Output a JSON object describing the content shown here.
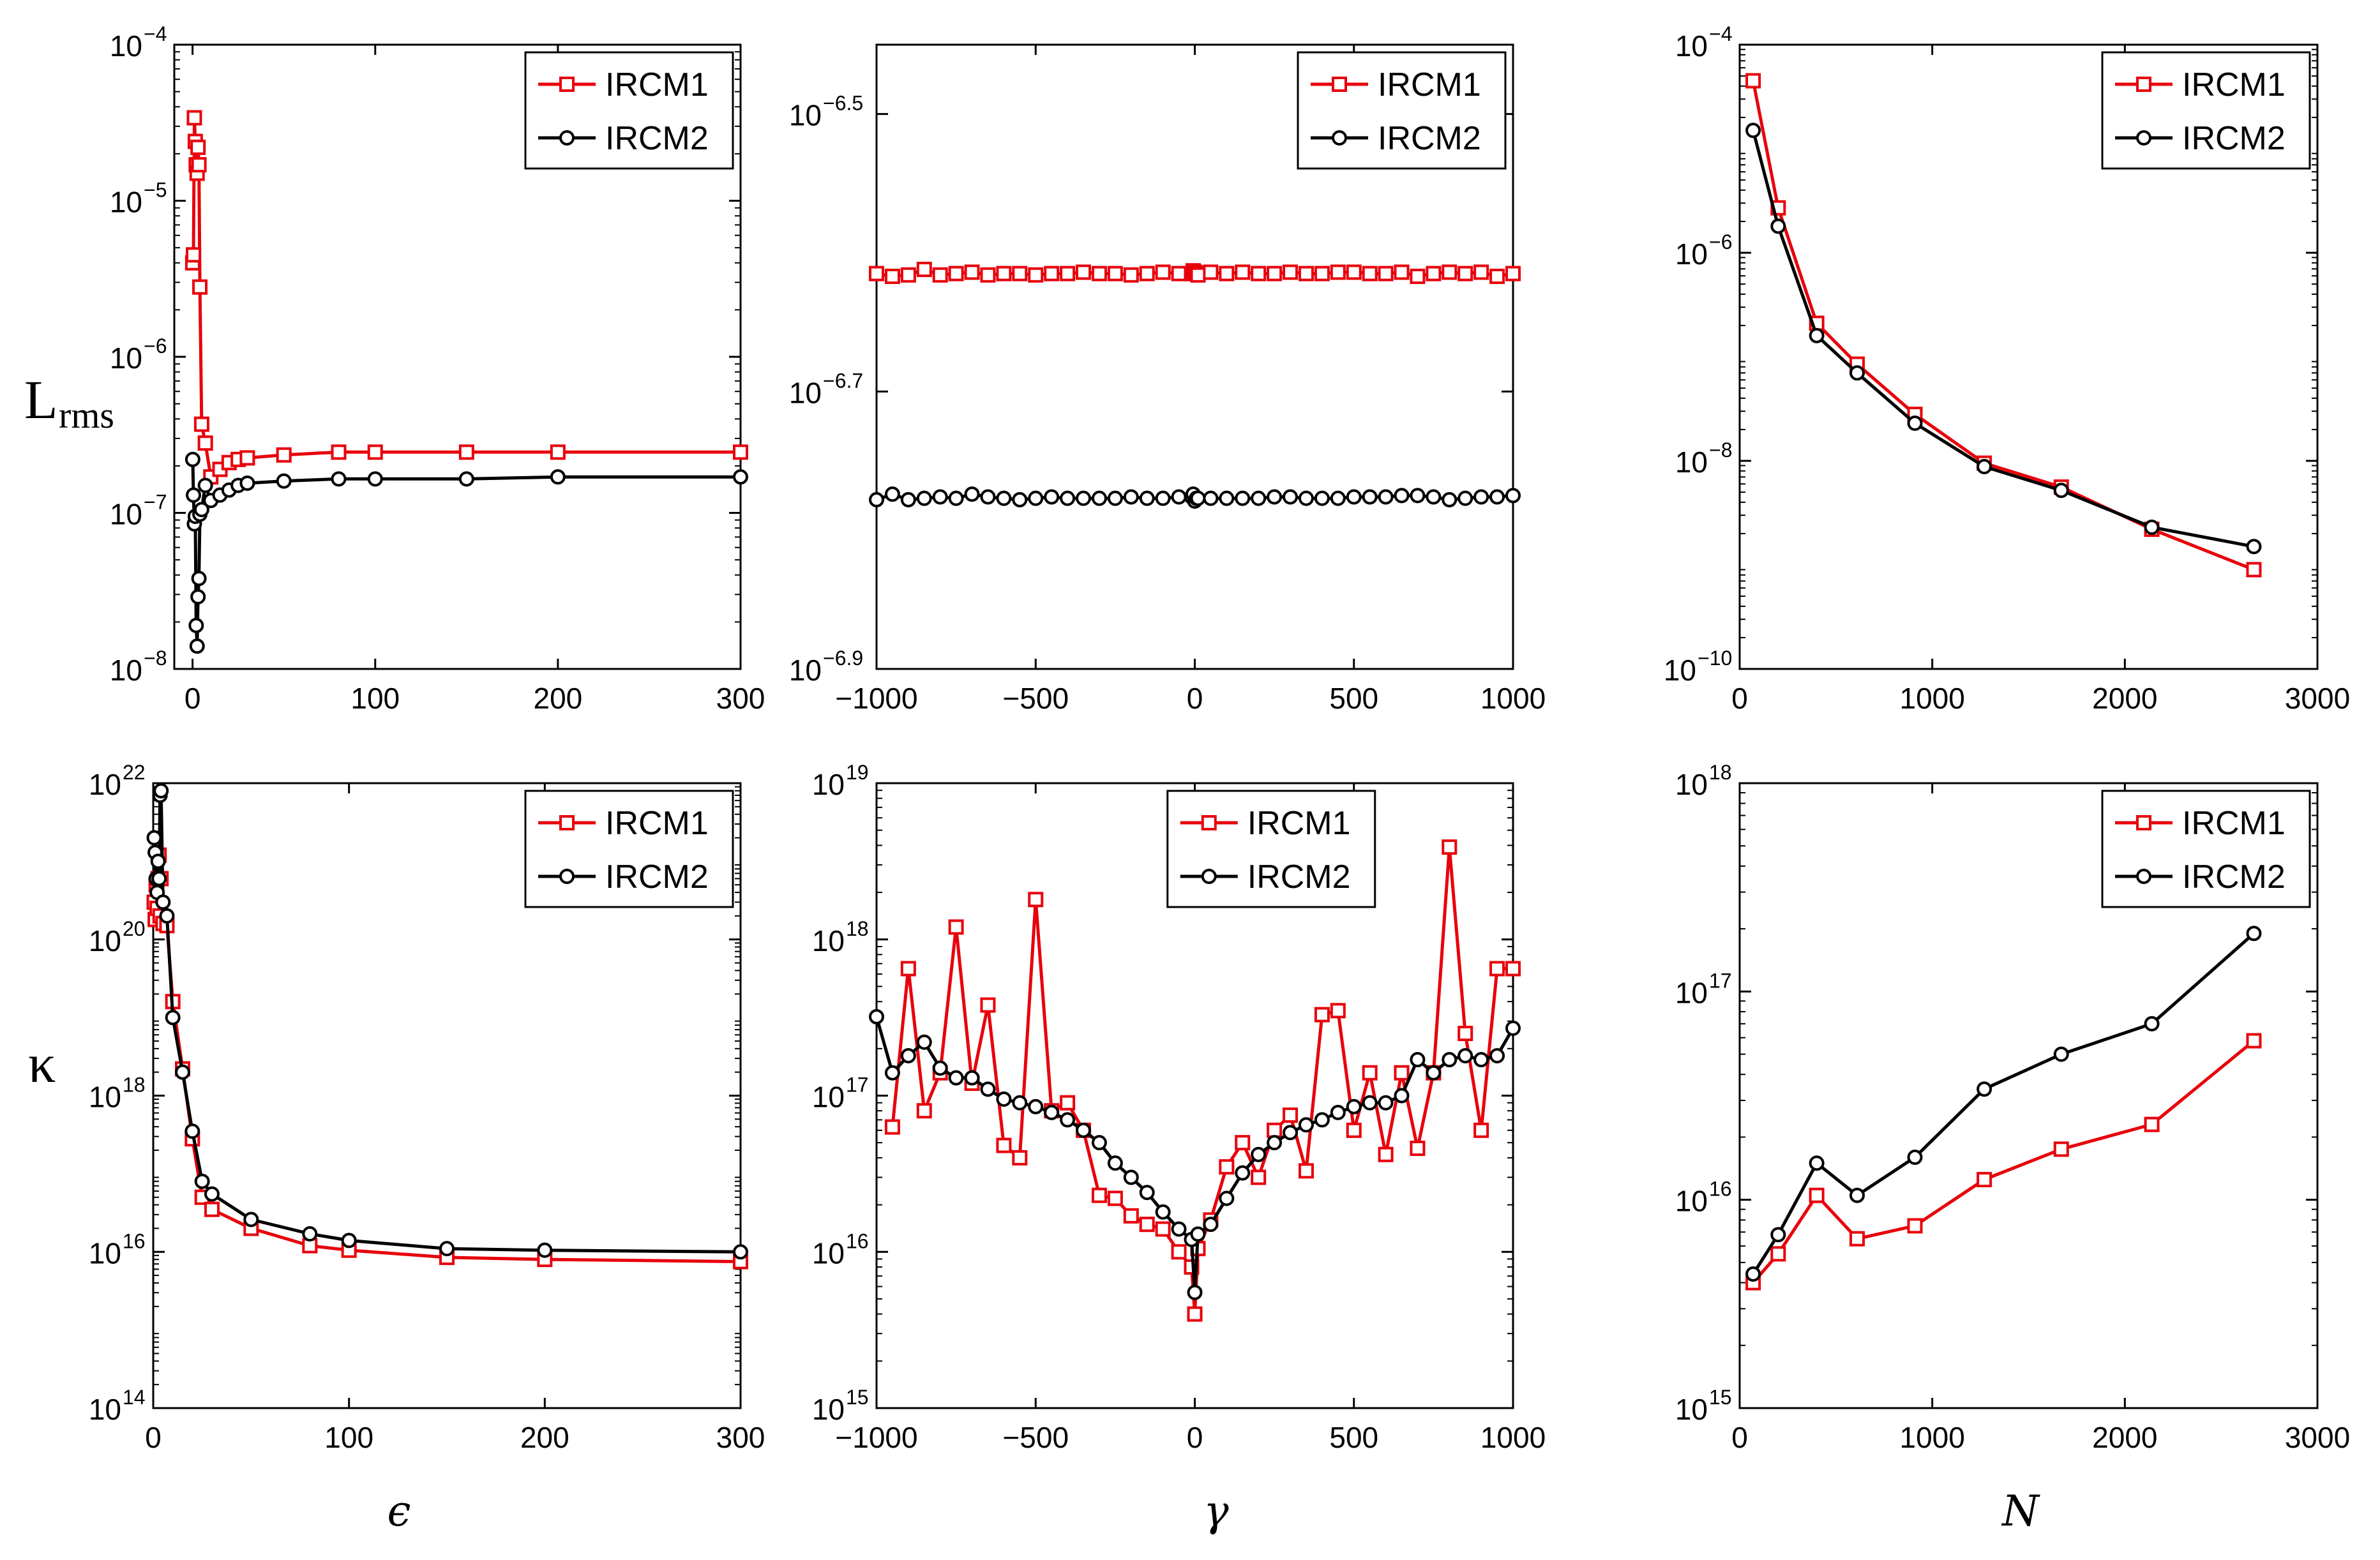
{
  "figure_text": {
    "row1_ylabel": "L",
    "row1_ylabel_sub": "rms",
    "row2_ylabel": "κ",
    "col1_xlabel": "ϵ",
    "col2_xlabel": "γ",
    "col3_xlabel": "N"
  },
  "colors": {
    "IRCM1": "#e8000b",
    "IRCM2": "#000000"
  },
  "chart_data": [
    {
      "id": "p11",
      "type": "line",
      "yscale": "log",
      "xlim": [
        -10,
        300
      ],
      "ylim_exp": [
        -8,
        -4
      ],
      "xticks": [
        0,
        100,
        200,
        300
      ],
      "xtick_labels": [
        "0",
        "100",
        "200",
        "300"
      ],
      "yticks_exp": [
        -8,
        -7,
        -6,
        -5,
        -4
      ],
      "ytick_bases": [
        "10",
        "10",
        "10",
        "10",
        "10"
      ],
      "ytick_exps": [
        "−8",
        "−7",
        "−6",
        "−5",
        "−4"
      ],
      "legend": [
        "IRCM1",
        "IRCM2"
      ],
      "series": [
        {
          "name": "IRCM1",
          "marker": "square",
          "x": [
            0.1,
            0.5,
            1,
            1.5,
            2,
            2.5,
            3,
            3.5,
            4,
            5,
            7,
            10,
            15,
            20,
            25,
            30,
            50,
            80,
            100,
            150,
            200,
            300
          ],
          "y": [
            4e-06,
            4.5e-06,
            3.4e-05,
            2.4e-05,
            1.7e-05,
            1.5e-05,
            2.2e-05,
            1.7e-05,
            2.8e-06,
            3.7e-07,
            2.8e-07,
            1.7e-07,
            1.9e-07,
            2.1e-07,
            2.2e-07,
            2.25e-07,
            2.35e-07,
            2.45e-07,
            2.45e-07,
            2.45e-07,
            2.45e-07,
            2.45e-07
          ]
        },
        {
          "name": "IRCM2",
          "marker": "circle",
          "x": [
            0.1,
            0.5,
            1,
            1.5,
            2,
            2.5,
            3,
            3.5,
            4,
            5,
            7,
            10,
            15,
            20,
            25,
            30,
            50,
            80,
            100,
            150,
            200,
            300
          ],
          "y": [
            2.2e-07,
            1.3e-07,
            8.5e-08,
            9.5e-08,
            1.9e-08,
            1.4e-08,
            2.9e-08,
            3.8e-08,
            9.8e-08,
            1.05e-07,
            1.5e-07,
            1.2e-07,
            1.3e-07,
            1.4e-07,
            1.5e-07,
            1.55e-07,
            1.6e-07,
            1.65e-07,
            1.65e-07,
            1.65e-07,
            1.7e-07,
            1.7e-07
          ]
        }
      ]
    },
    {
      "id": "p12",
      "type": "line",
      "yscale": "log",
      "xlim": [
        -1000,
        1000
      ],
      "ylim_exp": [
        -6.9,
        -6.45
      ],
      "xticks": [
        -1000,
        -500,
        0,
        500,
        1000
      ],
      "xtick_labels": [
        "−1000",
        "−500",
        "0",
        "500",
        "1000"
      ],
      "yticks_exp": [
        -6.9,
        -6.7,
        -6.5
      ],
      "ytick_bases": [
        "10",
        "10",
        "10"
      ],
      "ytick_exps": [
        "−6.9",
        "−6.7",
        "−6.5"
      ],
      "legend": [
        "IRCM1",
        "IRCM2"
      ],
      "series": [
        {
          "name": "IRCM1",
          "marker": "square",
          "x": [
            -1000,
            -950,
            -900,
            -850,
            -800,
            -750,
            -700,
            -650,
            -600,
            -550,
            -500,
            -450,
            -400,
            -350,
            -300,
            -250,
            -200,
            -150,
            -100,
            -50,
            -10,
            -5,
            0,
            5,
            10,
            50,
            100,
            150,
            200,
            250,
            300,
            350,
            400,
            450,
            500,
            550,
            600,
            650,
            700,
            750,
            800,
            850,
            900,
            950,
            1000
          ],
          "y": [
            -6.615,
            -6.617,
            -6.616,
            -6.612,
            -6.616,
            -6.615,
            -6.614,
            -6.616,
            -6.615,
            -6.615,
            -6.616,
            -6.615,
            -6.615,
            -6.614,
            -6.615,
            -6.615,
            -6.616,
            -6.615,
            -6.614,
            -6.615,
            -6.615,
            -6.613,
            -6.614,
            -6.615,
            -6.616,
            -6.614,
            -6.615,
            -6.614,
            -6.615,
            -6.615,
            -6.614,
            -6.615,
            -6.615,
            -6.614,
            -6.614,
            -6.615,
            -6.615,
            -6.614,
            -6.617,
            -6.615,
            -6.614,
            -6.615,
            -6.614,
            -6.617,
            -6.615
          ]
        },
        {
          "name": "IRCM2",
          "marker": "circle",
          "x": [
            -1000,
            -950,
            -900,
            -850,
            -800,
            -750,
            -700,
            -650,
            -600,
            -550,
            -500,
            -450,
            -400,
            -350,
            -300,
            -250,
            -200,
            -150,
            -100,
            -50,
            -10,
            -5,
            0,
            5,
            10,
            50,
            100,
            150,
            200,
            250,
            300,
            350,
            400,
            450,
            500,
            550,
            600,
            650,
            700,
            750,
            800,
            850,
            900,
            950,
            1000
          ],
          "y": [
            -6.778,
            -6.774,
            -6.778,
            -6.777,
            -6.776,
            -6.777,
            -6.774,
            -6.776,
            -6.777,
            -6.778,
            -6.777,
            -6.776,
            -6.777,
            -6.777,
            -6.777,
            -6.777,
            -6.776,
            -6.777,
            -6.777,
            -6.776,
            -6.776,
            -6.774,
            -6.779,
            -6.777,
            -6.777,
            -6.777,
            -6.777,
            -6.777,
            -6.777,
            -6.776,
            -6.776,
            -6.777,
            -6.777,
            -6.777,
            -6.776,
            -6.776,
            -6.776,
            -6.775,
            -6.775,
            -6.776,
            -6.778,
            -6.777,
            -6.776,
            -6.776,
            -6.775
          ]
        }
      ]
    },
    {
      "id": "p13",
      "type": "line",
      "yscale": "log",
      "xlim": [
        0,
        3000
      ],
      "ylim_exp": [
        -10,
        -4
      ],
      "xticks": [
        0,
        1000,
        2000,
        3000
      ],
      "xtick_labels": [
        "0",
        "1000",
        "2000",
        "3000"
      ],
      "yticks_exp": [
        -10,
        -8,
        -6,
        -4
      ],
      "ytick_bases": [
        "10",
        "10",
        "10",
        "10"
      ],
      "ytick_exps": [
        "−10",
        "−8",
        "−6",
        "−4"
      ],
      "legend": [
        "IRCM1",
        "IRCM2"
      ],
      "series": [
        {
          "name": "IRCM1",
          "marker": "square",
          "x": [
            70,
            200,
            400,
            610,
            910,
            1270,
            1670,
            2140,
            2670
          ],
          "y": [
            4.5e-05,
            2.7e-06,
            2.1e-07,
            8.5e-08,
            2.8e-08,
            9.5e-09,
            5.6e-09,
            2.2e-09,
            9e-10
          ]
        },
        {
          "name": "IRCM2",
          "marker": "circle",
          "x": [
            70,
            200,
            400,
            610,
            910,
            1270,
            1670,
            2140,
            2670
          ],
          "y": [
            1.5e-05,
            1.8e-06,
            1.6e-07,
            7e-08,
            2.3e-08,
            8.8e-09,
            5.2e-09,
            2.3e-09,
            1.5e-09
          ]
        }
      ]
    },
    {
      "id": "p21",
      "type": "line",
      "yscale": "log",
      "xlim": [
        0,
        300
      ],
      "ylim_exp": [
        14,
        22
      ],
      "xticks": [
        0,
        100,
        200,
        300
      ],
      "xtick_labels": [
        "0",
        "100",
        "200",
        "300"
      ],
      "yticks_exp": [
        14,
        16,
        18,
        20,
        22
      ],
      "ytick_bases": [
        "10",
        "10",
        "10",
        "10",
        "10"
      ],
      "ytick_exps": [
        "14",
        "16",
        "18",
        "20",
        "22"
      ],
      "legend": [
        "IRCM1",
        "IRCM2"
      ],
      "series": [
        {
          "name": "IRCM1",
          "marker": "square",
          "x": [
            0.5,
            1,
            1.5,
            2,
            2.5,
            3,
            3.5,
            4,
            5,
            7,
            10,
            15,
            20,
            25,
            30,
            50,
            80,
            100,
            150,
            200,
            300
          ],
          "y": [
            3e+20,
            1.8e+20,
            5e+20,
            2.5e+20,
            6e+20,
            1.2e+21,
            2e+20,
            6e+20,
            1.6e+20,
            1.5e+20,
            1.6e+19,
            2.2e+18,
            2.8e+17,
            5e+16,
            3.5e+16,
            2e+16,
            1.2e+16,
            1.05e+16,
            8500000000000000.0,
            8000000000000000.0,
            7500000000000000.0
          ]
        },
        {
          "name": "IRCM2",
          "marker": "circle",
          "x": [
            0.5,
            1,
            1.5,
            2,
            2.5,
            3,
            3.5,
            4,
            5,
            7,
            10,
            15,
            20,
            25,
            30,
            50,
            80,
            100,
            150,
            200,
            300
          ],
          "y": [
            2e+21,
            1.3e+21,
            6e+20,
            4e+20,
            1e+21,
            6e+20,
            7e+21,
            8e+21,
            3e+20,
            2e+20,
            1e+19,
            2e+18,
            3.5e+17,
            8e+16,
            5.5e+16,
            2.6e+16,
            1.7e+16,
            1.4e+16,
            1.1e+16,
            1.05e+16,
            1e+16
          ]
        }
      ]
    },
    {
      "id": "p22",
      "type": "line",
      "yscale": "log",
      "xlim": [
        -1000,
        1000
      ],
      "ylim_exp": [
        15,
        19
      ],
      "xticks": [
        -1000,
        -500,
        0,
        500,
        1000
      ],
      "xtick_labels": [
        "−1000",
        "−500",
        "0",
        "500",
        "1000"
      ],
      "yticks_exp": [
        15,
        16,
        17,
        18,
        19
      ],
      "ytick_bases": [
        "10",
        "10",
        "10",
        "10",
        "10"
      ],
      "ytick_exps": [
        "15",
        "16",
        "17",
        "18",
        "19"
      ],
      "legend": [
        "IRCM1",
        "IRCM2"
      ],
      "series": [
        {
          "name": "IRCM1",
          "marker": "square",
          "x": [
            -950,
            -900,
            -850,
            -800,
            -750,
            -700,
            -650,
            -600,
            -550,
            -500,
            -450,
            -400,
            -350,
            -300,
            -250,
            -200,
            -150,
            -100,
            -50,
            -10,
            0,
            10,
            50,
            100,
            150,
            200,
            250,
            300,
            350,
            400,
            450,
            500,
            550,
            600,
            650,
            700,
            750,
            800,
            850,
            900,
            950,
            1000
          ],
          "y": [
            6.3e+16,
            6.5e+17,
            8e+16,
            1.4e+17,
            1.2e+18,
            1.2e+17,
            3.8e+17,
            4.8e+16,
            4e+16,
            1.8e+18,
            8e+16,
            9e+16,
            6e+16,
            2.3e+16,
            2.2e+16,
            1.7e+16,
            1.5e+16,
            1.4e+16,
            1e+16,
            8000000000000000.0,
            4000000000000000.0,
            1.05e+16,
            1.6e+16,
            3.5e+16,
            5e+16,
            3e+16,
            6e+16,
            7.5e+16,
            3.3e+16,
            3.3e+17,
            3.5e+17,
            6e+16,
            1.4e+17,
            4.2e+16,
            1.4e+17,
            4.6e+16,
            1.4e+17,
            3.9e+18,
            2.5e+17,
            6e+16,
            6.5e+17,
            6.5e+17
          ]
        },
        {
          "name": "IRCM2",
          "marker": "circle",
          "x": [
            -1000,
            -950,
            -900,
            -850,
            -800,
            -750,
            -700,
            -650,
            -600,
            -550,
            -500,
            -450,
            -400,
            -350,
            -300,
            -250,
            -200,
            -150,
            -100,
            -50,
            -10,
            0,
            10,
            50,
            100,
            150,
            200,
            250,
            300,
            350,
            400,
            450,
            500,
            550,
            600,
            650,
            700,
            750,
            800,
            850,
            900,
            950,
            1000
          ],
          "y": [
            3.2e+17,
            1.4e+17,
            1.8e+17,
            2.2e+17,
            1.5e+17,
            1.3e+17,
            1.3e+17,
            1.1e+17,
            9.5e+16,
            9e+16,
            8.5e+16,
            7.8e+16,
            7e+16,
            6e+16,
            5e+16,
            3.7e+16,
            3e+16,
            2.4e+16,
            1.8e+16,
            1.4e+16,
            1.2e+16,
            5500000000000000.0,
            1.3e+16,
            1.5e+16,
            2.2e+16,
            3.2e+16,
            4.2e+16,
            5e+16,
            5.8e+16,
            6.5e+16,
            7e+16,
            7.8e+16,
            8.5e+16,
            9e+16,
            9e+16,
            1e+17,
            1.7e+17,
            1.4e+17,
            1.7e+17,
            1.8e+17,
            1.7e+17,
            1.8e+17,
            2.7e+17
          ]
        }
      ]
    },
    {
      "id": "p23",
      "type": "line",
      "yscale": "log",
      "xlim": [
        0,
        3000
      ],
      "ylim_exp": [
        15,
        18
      ],
      "xticks": [
        0,
        1000,
        2000,
        3000
      ],
      "xtick_labels": [
        "0",
        "1000",
        "2000",
        "3000"
      ],
      "yticks_exp": [
        15,
        16,
        17,
        18
      ],
      "ytick_bases": [
        "10",
        "10",
        "10",
        "10"
      ],
      "ytick_exps": [
        "15",
        "16",
        "17",
        "18"
      ],
      "legend": [
        "IRCM1",
        "IRCM2"
      ],
      "series": [
        {
          "name": "IRCM1",
          "marker": "square",
          "x": [
            70,
            200,
            400,
            610,
            910,
            1270,
            1670,
            2140,
            2670
          ],
          "y": [
            4000000000000000.0,
            5500000000000000.0,
            1.05e+16,
            6500000000000000.0,
            7500000000000000.0,
            1.25e+16,
            1.75e+16,
            2.3e+16,
            5.8e+16
          ]
        },
        {
          "name": "IRCM2",
          "marker": "circle",
          "x": [
            70,
            200,
            400,
            610,
            910,
            1270,
            1670,
            2140,
            2670
          ],
          "y": [
            4400000000000000.0,
            6800000000000000.0,
            1.5e+16,
            1.05e+16,
            1.6e+16,
            3.4e+16,
            5e+16,
            7e+16,
            1.9e+17
          ]
        }
      ]
    }
  ]
}
